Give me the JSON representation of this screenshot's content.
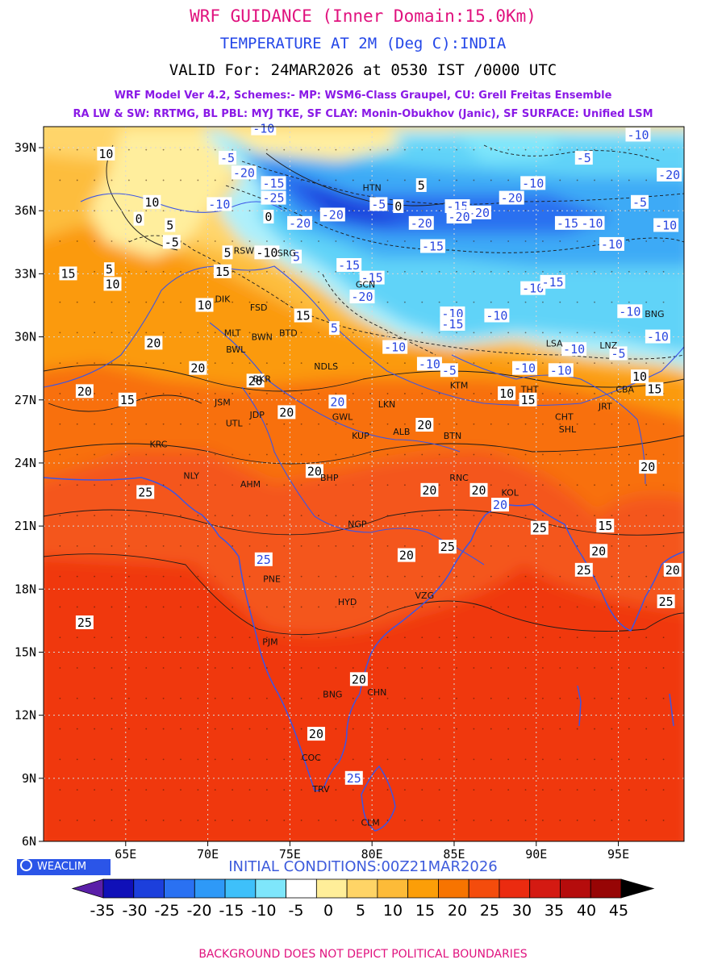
{
  "header": {
    "title": "WRF GUIDANCE (Inner Domain:15.0Km)",
    "subtitle": "TEMPERATURE AT 2M (Deg C):INDIA",
    "valid": "VALID For: 24MAR2026 at 0530 IST /0000 UTC",
    "model_line1": "WRF Model Ver 4.2, Schemes:- MP: WSM6-Class Graupel, CU: Grell Freitas Ensemble",
    "model_line2": "RA LW & SW: RRTMG, BL PBL: MYJ TKE, SF CLAY: Monin-Obukhov (Janic), SF SURFACE: Unified LSM"
  },
  "map": {
    "lat_labels": [
      "39N",
      "36N",
      "33N",
      "30N",
      "27N",
      "24N",
      "21N",
      "18N",
      "15N",
      "12N",
      "9N",
      "6N"
    ],
    "lon_labels": [
      "65E",
      "70E",
      "75E",
      "80E",
      "85E",
      "90E",
      "95E"
    ],
    "lat_range": [
      6,
      40
    ],
    "lon_range": [
      60,
      99
    ],
    "grid": true,
    "cities": [
      {
        "name": "HTN",
        "lon": 80.0,
        "lat": 37.1
      },
      {
        "name": "RSW",
        "lon": 72.2,
        "lat": 34.1
      },
      {
        "name": "SRG",
        "lon": 74.8,
        "lat": 34.0
      },
      {
        "name": "GCN",
        "lon": 79.6,
        "lat": 32.5
      },
      {
        "name": "FSD",
        "lon": 73.1,
        "lat": 31.4
      },
      {
        "name": "DIK",
        "lon": 70.9,
        "lat": 31.8
      },
      {
        "name": "MLT",
        "lon": 71.5,
        "lat": 30.2
      },
      {
        "name": "BWL",
        "lon": 71.7,
        "lat": 29.4
      },
      {
        "name": "BWN",
        "lon": 73.3,
        "lat": 30.0
      },
      {
        "name": "BTD",
        "lon": 74.9,
        "lat": 30.2
      },
      {
        "name": "NDLS",
        "lon": 77.2,
        "lat": 28.6
      },
      {
        "name": "BKR",
        "lon": 73.3,
        "lat": 28.0
      },
      {
        "name": "JSM",
        "lon": 70.9,
        "lat": 26.9
      },
      {
        "name": "JDP",
        "lon": 73.0,
        "lat": 26.3
      },
      {
        "name": "GWL",
        "lon": 78.2,
        "lat": 26.2
      },
      {
        "name": "LKN",
        "lon": 80.9,
        "lat": 26.8
      },
      {
        "name": "KTM",
        "lon": 85.3,
        "lat": 27.7
      },
      {
        "name": "THT",
        "lon": 89.6,
        "lat": 27.5
      },
      {
        "name": "CHT",
        "lon": 91.7,
        "lat": 26.2
      },
      {
        "name": "SHL",
        "lon": 91.9,
        "lat": 25.6
      },
      {
        "name": "JRT",
        "lon": 94.2,
        "lat": 26.7
      },
      {
        "name": "CBA",
        "lon": 95.4,
        "lat": 27.5
      },
      {
        "name": "BNG",
        "lon": 97.2,
        "lat": 31.1
      },
      {
        "name": "LNZ",
        "lon": 94.4,
        "lat": 29.6
      },
      {
        "name": "LSA",
        "lon": 91.1,
        "lat": 29.7
      },
      {
        "name": "ALB",
        "lon": 81.8,
        "lat": 25.5
      },
      {
        "name": "BTN",
        "lon": 84.9,
        "lat": 25.3
      },
      {
        "name": "KUP",
        "lon": 79.3,
        "lat": 25.3
      },
      {
        "name": "KRC",
        "lon": 67.0,
        "lat": 24.9
      },
      {
        "name": "UTL",
        "lon": 71.6,
        "lat": 25.9
      },
      {
        "name": "NLY",
        "lon": 69.0,
        "lat": 23.4
      },
      {
        "name": "AHM",
        "lon": 72.6,
        "lat": 23.0
      },
      {
        "name": "BHP",
        "lon": 77.4,
        "lat": 23.3
      },
      {
        "name": "RNC",
        "lon": 85.3,
        "lat": 23.3
      },
      {
        "name": "KOL",
        "lon": 88.4,
        "lat": 22.6
      },
      {
        "name": "NGP",
        "lon": 79.1,
        "lat": 21.1
      },
      {
        "name": "PNE",
        "lon": 73.9,
        "lat": 18.5
      },
      {
        "name": "HYD",
        "lon": 78.5,
        "lat": 17.4
      },
      {
        "name": "VZG",
        "lon": 83.2,
        "lat": 17.7
      },
      {
        "name": "PJM",
        "lon": 73.8,
        "lat": 15.5
      },
      {
        "name": "CHN",
        "lon": 80.3,
        "lat": 13.1
      },
      {
        "name": "BNG",
        "lon": 77.6,
        "lat": 13.0
      },
      {
        "name": "COC",
        "lon": 76.3,
        "lat": 10.0
      },
      {
        "name": "TRV",
        "lon": 76.9,
        "lat": 8.5
      },
      {
        "name": "CLM",
        "lon": 79.9,
        "lat": 6.9
      }
    ],
    "contour_labels": [
      {
        "v": "-10",
        "lon": 73.4,
        "lat": 39.9,
        "b": 1
      },
      {
        "v": "-5",
        "lon": 71.2,
        "lat": 38.5,
        "b": 1
      },
      {
        "v": "-20",
        "lon": 72.2,
        "lat": 37.8,
        "b": 1
      },
      {
        "v": "-15",
        "lon": 74.0,
        "lat": 37.3,
        "b": 1
      },
      {
        "v": "-25",
        "lon": 74.0,
        "lat": 36.6,
        "b": 1
      },
      {
        "v": "-10",
        "lon": 70.7,
        "lat": 36.3,
        "b": 1
      },
      {
        "v": "-20",
        "lon": 75.6,
        "lat": 35.4,
        "b": 1
      },
      {
        "v": "-20",
        "lon": 77.6,
        "lat": 35.8,
        "b": 1
      },
      {
        "v": "-5",
        "lon": 80.4,
        "lat": 36.3,
        "b": 1
      },
      {
        "v": "0",
        "lon": 81.6,
        "lat": 36.2,
        "b": 0
      },
      {
        "v": "5",
        "lon": 83.0,
        "lat": 37.2,
        "b": 0
      },
      {
        "v": "-15",
        "lon": 85.2,
        "lat": 36.2,
        "b": 1
      },
      {
        "v": "-20",
        "lon": 86.5,
        "lat": 35.9,
        "b": 1
      },
      {
        "v": "-20",
        "lon": 88.5,
        "lat": 36.6,
        "b": 1
      },
      {
        "v": "-10",
        "lon": 89.8,
        "lat": 37.3,
        "b": 1
      },
      {
        "v": "-20",
        "lon": 85.3,
        "lat": 35.7,
        "b": 1
      },
      {
        "v": "-20",
        "lon": 83.0,
        "lat": 35.4,
        "b": 1
      },
      {
        "v": "-15",
        "lon": 83.7,
        "lat": 34.3,
        "b": 1
      },
      {
        "v": "-15",
        "lon": 91.9,
        "lat": 35.4,
        "b": 1
      },
      {
        "v": "-10",
        "lon": 93.4,
        "lat": 35.4,
        "b": 1
      },
      {
        "v": "-5",
        "lon": 92.9,
        "lat": 38.5,
        "b": 1
      },
      {
        "v": "-10",
        "lon": 96.2,
        "lat": 39.6,
        "b": 1
      },
      {
        "v": "-20",
        "lon": 98.1,
        "lat": 37.7,
        "b": 1
      },
      {
        "v": "-5",
        "lon": 96.3,
        "lat": 36.4,
        "b": 1
      },
      {
        "v": "-10",
        "lon": 97.9,
        "lat": 35.3,
        "b": 1
      },
      {
        "v": "-10",
        "lon": 94.6,
        "lat": 34.4,
        "b": 1
      },
      {
        "v": "-15",
        "lon": 78.6,
        "lat": 33.4,
        "b": 1
      },
      {
        "v": "-15",
        "lon": 80.0,
        "lat": 32.8,
        "b": 1
      },
      {
        "v": "-20",
        "lon": 79.4,
        "lat": 31.9,
        "b": 1
      },
      {
        "v": "-10",
        "lon": 89.8,
        "lat": 32.3,
        "b": 1
      },
      {
        "v": "-15",
        "lon": 91.0,
        "lat": 32.6,
        "b": 1
      },
      {
        "v": "-10",
        "lon": 95.7,
        "lat": 31.2,
        "b": 1
      },
      {
        "v": "-10",
        "lon": 84.9,
        "lat": 31.1,
        "b": 1
      },
      {
        "v": "-10",
        "lon": 87.6,
        "lat": 31.0,
        "b": 1
      },
      {
        "v": "-15",
        "lon": 84.9,
        "lat": 30.6,
        "b": 1
      },
      {
        "v": "-10",
        "lon": 81.4,
        "lat": 29.5,
        "b": 1
      },
      {
        "v": "-10",
        "lon": 83.5,
        "lat": 28.7,
        "b": 1
      },
      {
        "v": "-5",
        "lon": 84.7,
        "lat": 28.4,
        "b": 1
      },
      {
        "v": "-10",
        "lon": 89.3,
        "lat": 28.5,
        "b": 1
      },
      {
        "v": "-10",
        "lon": 91.5,
        "lat": 28.4,
        "b": 1
      },
      {
        "v": "-10",
        "lon": 92.3,
        "lat": 29.4,
        "b": 1
      },
      {
        "v": "-5",
        "lon": 95.0,
        "lat": 29.2,
        "b": 1
      },
      {
        "v": "-10",
        "lon": 97.4,
        "lat": 30.0,
        "b": 1
      },
      {
        "v": "10",
        "lon": 63.8,
        "lat": 38.7,
        "b": 0
      },
      {
        "v": "10",
        "lon": 66.6,
        "lat": 36.4,
        "b": 0
      },
      {
        "v": "0",
        "lon": 65.8,
        "lat": 35.6,
        "b": 0
      },
      {
        "v": "5",
        "lon": 67.7,
        "lat": 35.3,
        "b": 0
      },
      {
        "v": "-5",
        "lon": 67.8,
        "lat": 34.5,
        "b": 0
      },
      {
        "v": "5",
        "lon": 71.2,
        "lat": 34.0,
        "b": 0
      },
      {
        "v": "15",
        "lon": 61.5,
        "lat": 33.0,
        "b": 0
      },
      {
        "v": "5",
        "lon": 64.0,
        "lat": 33.2,
        "b": 0
      },
      {
        "v": "10",
        "lon": 64.2,
        "lat": 32.5,
        "b": 0
      },
      {
        "v": "15",
        "lon": 70.9,
        "lat": 33.1,
        "b": 0
      },
      {
        "v": "10",
        "lon": 69.8,
        "lat": 31.5,
        "b": 0
      },
      {
        "v": "5",
        "lon": 75.4,
        "lat": 33.8,
        "b": 1
      },
      {
        "v": "-10",
        "lon": 73.6,
        "lat": 34.0,
        "b": 0
      },
      {
        "v": "0",
        "lon": 73.7,
        "lat": 35.7,
        "b": 0
      },
      {
        "v": "15",
        "lon": 75.8,
        "lat": 31.0,
        "b": 0
      },
      {
        "v": "5",
        "lon": 77.7,
        "lat": 30.4,
        "b": 1
      },
      {
        "v": "20",
        "lon": 66.7,
        "lat": 29.7,
        "b": 0
      },
      {
        "v": "20",
        "lon": 69.4,
        "lat": 28.5,
        "b": 0
      },
      {
        "v": "20",
        "lon": 62.5,
        "lat": 27.4,
        "b": 0
      },
      {
        "v": "15",
        "lon": 65.1,
        "lat": 27.0,
        "b": 0
      },
      {
        "v": "20",
        "lon": 72.9,
        "lat": 27.9,
        "b": 0
      },
      {
        "v": "20",
        "lon": 74.8,
        "lat": 26.4,
        "b": 0
      },
      {
        "v": "20",
        "lon": 77.9,
        "lat": 26.9,
        "b": 1
      },
      {
        "v": "20",
        "lon": 83.2,
        "lat": 25.8,
        "b": 0
      },
      {
        "v": "10",
        "lon": 88.2,
        "lat": 27.3,
        "b": 0
      },
      {
        "v": "15",
        "lon": 89.5,
        "lat": 27.0,
        "b": 0
      },
      {
        "v": "10",
        "lon": 96.3,
        "lat": 28.1,
        "b": 0
      },
      {
        "v": "15",
        "lon": 97.2,
        "lat": 27.5,
        "b": 0
      },
      {
        "v": "20",
        "lon": 76.5,
        "lat": 23.6,
        "b": 0
      },
      {
        "v": "25",
        "lon": 66.2,
        "lat": 22.6,
        "b": 0
      },
      {
        "v": "20",
        "lon": 83.5,
        "lat": 22.7,
        "b": 0
      },
      {
        "v": "20",
        "lon": 86.5,
        "lat": 22.7,
        "b": 0
      },
      {
        "v": "20",
        "lon": 87.8,
        "lat": 22.0,
        "b": 1
      },
      {
        "v": "20",
        "lon": 96.8,
        "lat": 23.8,
        "b": 0
      },
      {
        "v": "25",
        "lon": 90.2,
        "lat": 20.9,
        "b": 0
      },
      {
        "v": "15",
        "lon": 94.2,
        "lat": 21.0,
        "b": 0
      },
      {
        "v": "20",
        "lon": 93.8,
        "lat": 19.8,
        "b": 0
      },
      {
        "v": "25",
        "lon": 84.6,
        "lat": 20.0,
        "b": 0
      },
      {
        "v": "20",
        "lon": 82.1,
        "lat": 19.6,
        "b": 0
      },
      {
        "v": "25",
        "lon": 92.9,
        "lat": 18.9,
        "b": 0
      },
      {
        "v": "20",
        "lon": 98.3,
        "lat": 18.9,
        "b": 0
      },
      {
        "v": "25",
        "lon": 73.4,
        "lat": 19.4,
        "b": 1
      },
      {
        "v": "25",
        "lon": 97.9,
        "lat": 17.4,
        "b": 0
      },
      {
        "v": "25",
        "lon": 62.5,
        "lat": 16.4,
        "b": 0
      },
      {
        "v": "20",
        "lon": 79.2,
        "lat": 13.7,
        "b": 0
      },
      {
        "v": "20",
        "lon": 76.6,
        "lat": 11.1,
        "b": 0
      },
      {
        "v": "25",
        "lon": 78.9,
        "lat": 9.0,
        "b": 1
      }
    ]
  },
  "logo": {
    "text": "WEACLIM"
  },
  "initial_conditions": "INITIAL CONDITIONS:00Z21MAR2026",
  "colorbar": {
    "colors": [
      "#5a1fa8",
      "#1010b8",
      "#1c3fdc",
      "#2a71f2",
      "#2e99f7",
      "#3ec0fa",
      "#7ee6fb",
      "#ffffff",
      "#ffee99",
      "#ffd466",
      "#fdbb38",
      "#fc9e08",
      "#f77400",
      "#f44c0c",
      "#eb2b10",
      "#d41a12",
      "#b50c0c",
      "#970505",
      "#000000"
    ],
    "labels": [
      "-35",
      "-30",
      "-25",
      "-20",
      "-15",
      "-10",
      "-5",
      "0",
      "5",
      "10",
      "15",
      "20",
      "25",
      "30",
      "35",
      "40",
      "45"
    ]
  },
  "footer": "BACKGROUND DOES NOT DEPICT POLITICAL BOUNDARIES"
}
